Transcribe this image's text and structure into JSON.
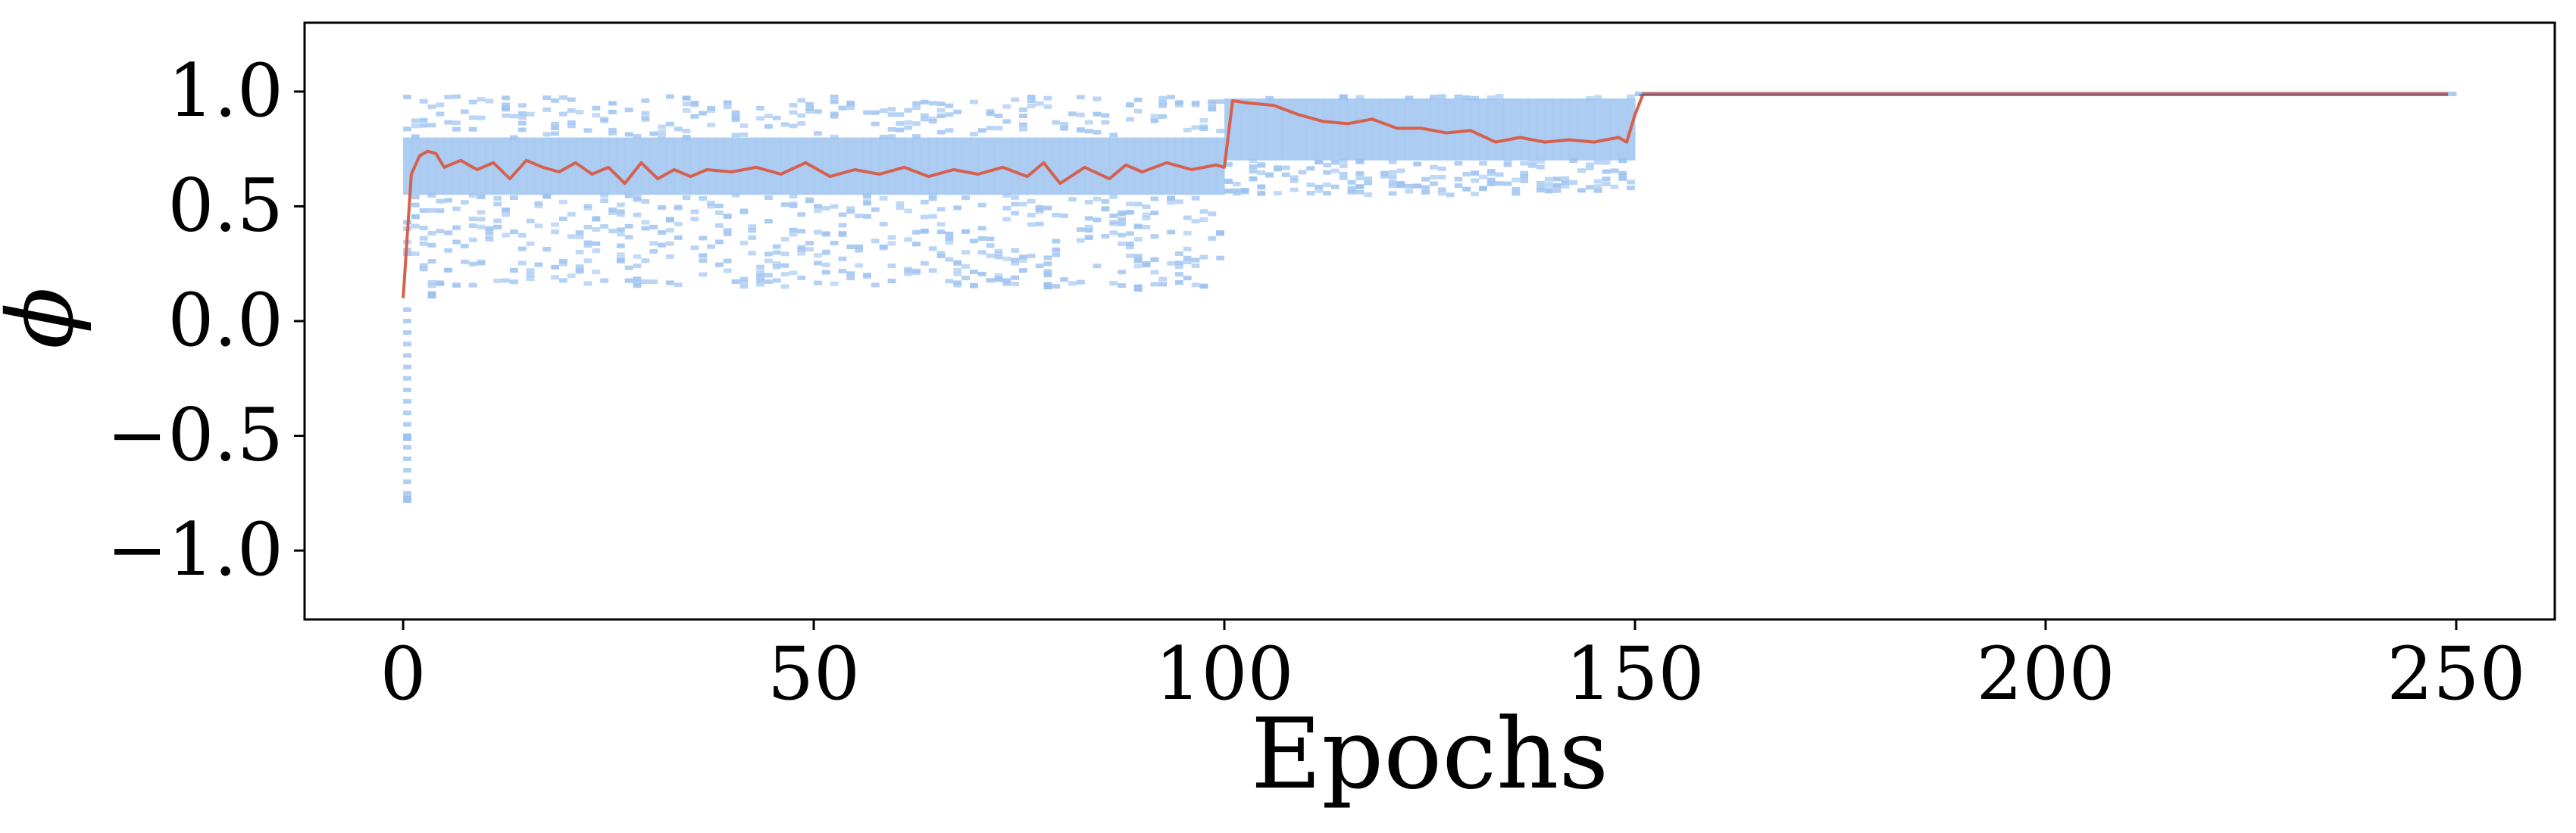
{
  "colors": {
    "background": "#ffffff",
    "density": "#9ec3f0",
    "mean_line": "#d6604d",
    "axis": "#000000"
  },
  "chart_data": {
    "type": "heatmap",
    "title": "",
    "xlabel": "Epochs",
    "ylabel": "ϕ",
    "xlim": [
      -12,
      262
    ],
    "ylim": [
      -1.3,
      1.3
    ],
    "xticks": [
      0,
      50,
      100,
      150,
      200,
      250
    ],
    "xtick_labels": [
      "0",
      "50",
      "100",
      "150",
      "200",
      "250"
    ],
    "yticks": [
      -1.0,
      -0.5,
      0.0,
      0.5,
      1.0
    ],
    "ytick_labels": [
      "−1.0",
      "−0.5",
      "0.0",
      "0.5",
      "1.0"
    ],
    "grid": false,
    "legend": false,
    "series": [
      {
        "kind": "distribution-band",
        "x_range": [
          0,
          250
        ],
        "spread_by_x_range": [
          {
            "x": [
              0,
              100
            ],
            "core": [
              0.55,
              0.8
            ],
            "tail": [
              0.15,
              0.98
            ]
          },
          {
            "x": [
              100,
              150
            ],
            "core": [
              0.7,
              0.97
            ],
            "tail": [
              0.55,
              0.98
            ]
          },
          {
            "x": [
              150,
              250
            ],
            "core": [
              0.98,
              1.0
            ],
            "tail": [
              0.98,
              1.0
            ]
          }
        ],
        "outliers": [
          [
            0,
            -0.77
          ],
          [
            0,
            -0.5
          ],
          [
            3,
            0.12
          ],
          [
            78,
            0.16
          ],
          [
            89,
            0.15
          ]
        ]
      },
      {
        "kind": "line",
        "x": [
          0,
          1,
          2,
          3,
          4,
          5,
          7,
          9,
          11,
          13,
          15,
          17,
          19,
          21,
          23,
          25,
          27,
          29,
          31,
          33,
          35,
          37,
          40,
          43,
          46,
          49,
          52,
          55,
          58,
          61,
          64,
          67,
          70,
          73,
          76,
          78,
          80,
          83,
          86,
          88,
          90,
          93,
          96,
          99,
          100,
          101,
          103,
          106,
          109,
          112,
          115,
          118,
          121,
          124,
          127,
          130,
          133,
          136,
          139,
          142,
          145,
          148,
          149,
          150,
          151,
          160,
          180,
          200,
          220,
          249
        ],
        "y": [
          0.1,
          0.64,
          0.72,
          0.74,
          0.73,
          0.67,
          0.7,
          0.66,
          0.69,
          0.62,
          0.7,
          0.67,
          0.65,
          0.69,
          0.64,
          0.67,
          0.6,
          0.69,
          0.62,
          0.66,
          0.63,
          0.66,
          0.65,
          0.67,
          0.64,
          0.69,
          0.63,
          0.66,
          0.64,
          0.67,
          0.63,
          0.66,
          0.64,
          0.67,
          0.63,
          0.69,
          0.6,
          0.67,
          0.62,
          0.68,
          0.65,
          0.69,
          0.66,
          0.68,
          0.67,
          0.96,
          0.95,
          0.94,
          0.9,
          0.87,
          0.86,
          0.88,
          0.84,
          0.84,
          0.82,
          0.83,
          0.78,
          0.8,
          0.78,
          0.79,
          0.78,
          0.8,
          0.78,
          0.9,
          0.99,
          0.99,
          0.99,
          0.99,
          0.99,
          0.99
        ]
      }
    ]
  }
}
